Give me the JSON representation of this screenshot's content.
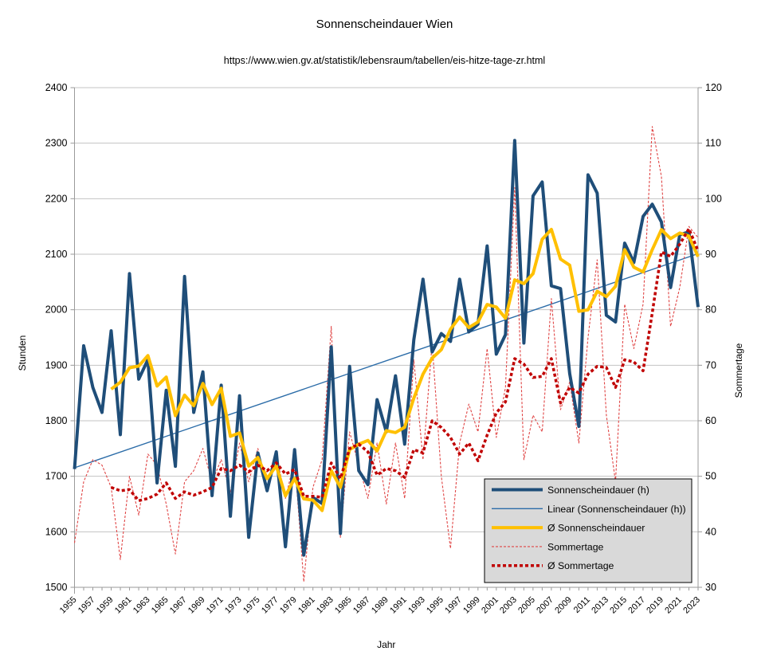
{
  "header": {
    "title": "Sonnenscheindauer Wien",
    "subtitle": "https://www.wien.gv.at/statistik/lebensraum/tabellen/eis-hitze-tage-zr.html"
  },
  "chart_data": {
    "type": "line",
    "title": "Sonnenscheindauer Wien",
    "subtitle": "https://www.wien.gv.at/statistik/lebensraum/tabellen/eis-hitze-tage-zr.html",
    "xlabel": "Jahr",
    "ylabel_left": "Stunden",
    "ylabel_right": "Sommertage",
    "x_years": [
      1955,
      1956,
      1957,
      1958,
      1959,
      1960,
      1961,
      1962,
      1963,
      1964,
      1965,
      1966,
      1967,
      1968,
      1969,
      1970,
      1971,
      1972,
      1973,
      1974,
      1975,
      1976,
      1977,
      1978,
      1979,
      1980,
      1981,
      1982,
      1983,
      1984,
      1985,
      1986,
      1987,
      1988,
      1989,
      1990,
      1991,
      1992,
      1993,
      1994,
      1995,
      1996,
      1997,
      1998,
      1999,
      2000,
      2001,
      2002,
      2003,
      2004,
      2005,
      2006,
      2007,
      2008,
      2009,
      2010,
      2011,
      2012,
      2013,
      2014,
      2015,
      2016,
      2017,
      2018,
      2019,
      2020,
      2021,
      2022,
      2023
    ],
    "x_tick_label_step": 2,
    "ylim_left": [
      1500,
      2400
    ],
    "ytick_step_left": 100,
    "ylim_right": [
      30,
      120
    ],
    "ytick_step_right": 10,
    "grid": true,
    "legend_position": "inside-bottom-right",
    "series": [
      {
        "name": "Sonnenscheindauer (h)",
        "axis": "left",
        "style": {
          "color": "#1F4E79",
          "width": 4,
          "dash": null
        },
        "values": [
          1713,
          1935,
          1860,
          1815,
          1962,
          1775,
          2065,
          1875,
          1910,
          1688,
          1855,
          1718,
          2060,
          1815,
          1888,
          1665,
          1864,
          1628,
          1845,
          1590,
          1742,
          1674,
          1744,
          1573,
          1748,
          1558,
          1662,
          1651,
          1933,
          1597,
          1898,
          1710,
          1685,
          1838,
          1780,
          1881,
          1758,
          1946,
          2055,
          1924,
          1957,
          1943,
          2055,
          1960,
          1974,
          2115,
          1920,
          1955,
          2305,
          1940,
          2205,
          2230,
          2043,
          2038,
          1885,
          1790,
          2243,
          2210,
          1990,
          1978,
          2120,
          2085,
          2168,
          2190,
          2158,
          2040,
          2135,
          2140,
          2005
        ]
      },
      {
        "name": "Linear (Sonnenscheindauer (h))",
        "axis": "left",
        "style": {
          "color": "#2B6CA8",
          "width": 1.4,
          "dash": null
        },
        "computed": "least_squares_of_series_0"
      },
      {
        "name": "Ø Sonnenscheindauer",
        "axis": "left",
        "style": {
          "color": "#FFC000",
          "width": 4,
          "dash": null
        },
        "computed": "trailing_mean_5_of_series_0"
      },
      {
        "name": "Sommertage",
        "axis": "right",
        "style": {
          "color": "#E04545",
          "width": 1.1,
          "dash": "3,2"
        },
        "values": [
          38,
          49,
          53,
          52,
          48,
          35,
          50,
          43,
          54,
          52,
          45,
          36,
          49,
          51,
          55,
          49,
          53,
          47,
          56,
          49,
          55,
          48,
          54,
          46,
          53,
          31,
          48,
          53,
          77,
          39,
          58,
          52,
          46,
          56,
          45,
          56,
          46,
          71,
          53,
          74,
          50,
          37,
          56,
          63,
          58,
          73,
          57,
          66,
          102,
          53,
          61,
          58,
          82,
          62,
          67,
          56,
          75,
          89,
          61,
          49,
          81,
          73,
          81,
          113,
          104,
          77,
          84,
          95,
          93
        ]
      },
      {
        "name": "Ø Sommertage",
        "axis": "right",
        "style": {
          "color": "#C00000",
          "width": 3.5,
          "dash": "4,3"
        },
        "computed": "trailing_mean_5_of_series_3"
      }
    ]
  },
  "colors": {
    "gridline": "#C3C3C3",
    "axis_line": "#9A9A9A",
    "legend_bg": "#D9D9D9",
    "legend_border": "#000000",
    "text": "#000000"
  }
}
